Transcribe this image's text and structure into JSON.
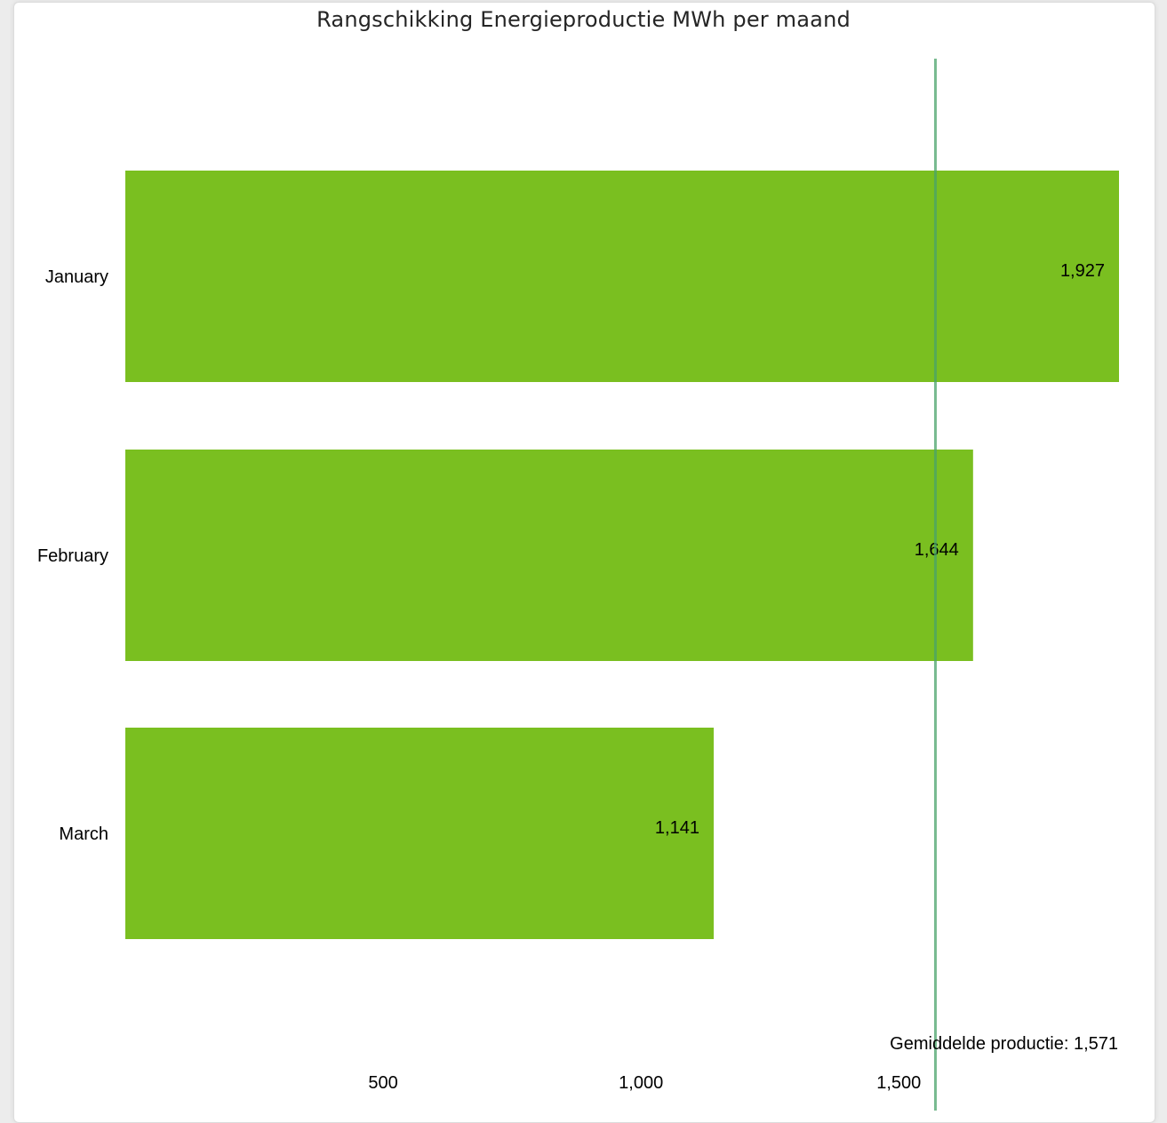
{
  "chart_data": {
    "type": "bar",
    "orientation": "horizontal",
    "title": "Rangschikking Energieproductie MWh per maand",
    "categories": [
      "January",
      "February",
      "March"
    ],
    "values": [
      1927,
      1644,
      1141
    ],
    "value_labels": [
      "1,927",
      "1,644",
      "1,141"
    ],
    "xlim": [
      0,
      1927
    ],
    "xticks": [
      {
        "value": 500,
        "label": "500"
      },
      {
        "value": 1000,
        "label": "1,000"
      },
      {
        "value": 1500,
        "label": "1,500"
      }
    ],
    "reference_line": {
      "value": 1571,
      "label": "Gemiddelde productie: 1,571"
    },
    "grid": false,
    "legend": "none",
    "colors": {
      "bar": "#7abf20",
      "reference_line": "#4aa36a"
    }
  }
}
